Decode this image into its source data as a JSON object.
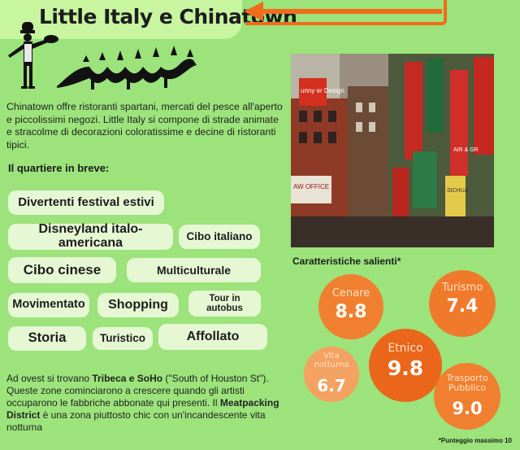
{
  "title": "Little Italy e Chinatown",
  "intro": "Chinatown offre  ristoranti spartani, mercati del pesce all'aperto e piccolissimi negozi. Little Italy si compone di strade animate e stracolme di decorazioni coloratissime e decine di ristoranti tipici.",
  "subhead": "Il quartiere in breve:",
  "tags": [
    "Divertenti festival estivi",
    "Disneyland italo-americana",
    "Cibo italiano",
    "Cibo cinese",
    "Multiculturale",
    "Movimentato",
    "Shopping",
    "Tour in autobus",
    "Storia",
    "Turistico",
    "Affollato"
  ],
  "photo_signs": {
    "sign1": "unny er Design",
    "sign2": "AW OFFICE",
    "sign3": "AIR & GR",
    "sign4": "SICHUA"
  },
  "chart_title": "Caratteristiche salienti*",
  "footnote": "*Punteggio massimo 10",
  "chart_data": {
    "type": "bubble",
    "title": "Caratteristiche salienti*",
    "max_score": 10,
    "series": [
      {
        "label": "Cenare",
        "value": "8.8"
      },
      {
        "label": "Turismo",
        "value": "7.4"
      },
      {
        "label": "Etnico",
        "value": "9.8"
      },
      {
        "label": "Vita notturna",
        "value": "6.7"
      },
      {
        "label": "Trasporto Pubblico",
        "value": "9.0"
      }
    ]
  },
  "outro": {
    "p1": "Ad ovest si trovano ",
    "b1": "Tribeca e SoHo",
    "p2": " (\"South of Houston St\"). Queste  zone cominciarono a crescere quando gli artisti occuparono le fabbriche abbonate qui presenti. Il  ",
    "b2": "Meatpacking District",
    "p3": " è una zona piuttosto chic con un'incandescente vita notturna"
  },
  "colors": {
    "background": "#9be37a",
    "tag_fill": "#e6f7d4",
    "accent_orange": "#f26a1b",
    "bubble_orange": "#f08030"
  },
  "icons": [
    "chef-icon",
    "dragon-icon",
    "arrow-left-icon"
  ]
}
